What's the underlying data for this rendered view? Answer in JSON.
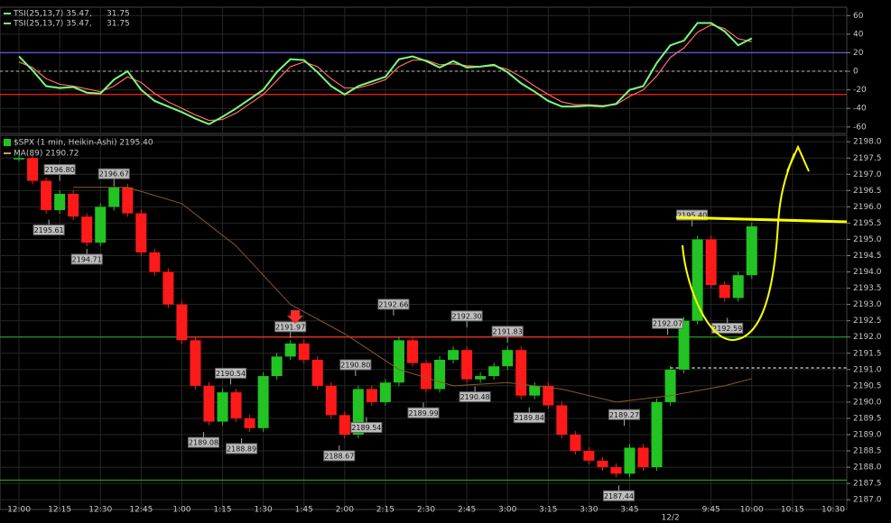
{
  "chart_data": [
    {
      "type": "line",
      "legend": [
        {
          "text": "TSI(25,13,7) 35.47,",
          "signal": "31.75"
        },
        {
          "text": "TSI(25,13,7) 35.47,",
          "signal": "31.75"
        }
      ],
      "xlim": [
        -7,
        305
      ],
      "ylim": [
        -67,
        69
      ],
      "yticks": [
        60,
        40,
        20,
        0,
        -20,
        -40,
        -60
      ],
      "levels": [
        {
          "value": 20,
          "color": "#5a5ad8"
        },
        {
          "value": 0,
          "color": "#9a9a9a",
          "dash": true
        },
        {
          "value": -25,
          "color": "#ff2020"
        }
      ],
      "x": [
        0,
        5,
        10,
        15,
        20,
        25,
        30,
        35,
        40,
        45,
        50,
        55,
        60,
        65,
        70,
        75,
        80,
        85,
        90,
        95,
        100,
        105,
        110,
        115,
        120,
        125,
        130,
        135,
        140,
        145,
        150,
        155,
        160,
        165,
        170,
        175,
        180,
        185,
        190,
        195,
        200,
        205,
        210,
        215,
        220,
        225,
        230,
        235,
        240,
        245,
        250,
        255,
        260,
        265,
        270
      ],
      "series": [
        {
          "color": "#ff6a6a",
          "values": [
            10,
            4,
            -8,
            -14,
            -16,
            -19,
            -22,
            -16,
            -6,
            -12,
            -24,
            -33,
            -40,
            -47,
            -53,
            -52,
            -45,
            -35,
            -25,
            -10,
            5,
            10,
            5,
            -8,
            -18,
            -18,
            -14,
            -9,
            5,
            12,
            12,
            7,
            8,
            6,
            5,
            6,
            2,
            -6,
            -16,
            -25,
            -33,
            -36,
            -36,
            -37,
            -36,
            -27,
            -20,
            -5,
            15,
            25,
            42,
            50,
            46,
            35,
            31.75
          ]
        },
        {
          "color": "#7cfc7c",
          "values": [
            16,
            1,
            -16,
            -18,
            -17,
            -23,
            -24,
            -9,
            0,
            -20,
            -32,
            -38,
            -44,
            -51,
            -57,
            -49,
            -40,
            -30,
            -20,
            -1,
            13,
            12,
            -1,
            -16,
            -25,
            -16,
            -11,
            -6,
            13,
            16,
            11,
            4,
            11,
            4,
            5,
            7,
            -1,
            -13,
            -22,
            -32,
            -38,
            -38,
            -37,
            -38,
            -35,
            -20,
            -16,
            9,
            28,
            33,
            52,
            52,
            43,
            28,
            35.47
          ]
        }
      ]
    },
    {
      "type": "heikin-ashi",
      "title": "$SPX (1 min, Heikin-Ashi) 2195.40",
      "ma_label": "MA(89) 2190.72",
      "xlim": [
        -7,
        305
      ],
      "ylim": [
        2186.7,
        2198.2
      ],
      "yticks": [
        {
          "value": 2198,
          "label": "2198.0"
        },
        {
          "value": 2197.5,
          "label": "2197.5"
        },
        {
          "value": 2197,
          "label": "2197.0"
        },
        {
          "value": 2196.5,
          "label": "2196.5"
        },
        {
          "value": 2196,
          "label": "2196.0"
        },
        {
          "value": 2195.5,
          "label": "2195.5"
        },
        {
          "value": 2195,
          "label": "2195.0"
        },
        {
          "value": 2194.5,
          "label": "2194.5"
        },
        {
          "value": 2194,
          "label": "2194.0"
        },
        {
          "value": 2193.5,
          "label": "2193.5"
        },
        {
          "value": 2193,
          "label": "2193.0"
        },
        {
          "value": 2192.5,
          "label": "2192.5"
        },
        {
          "value": 2192,
          "label": "2192.0"
        },
        {
          "value": 2191.5,
          "label": "2191.5"
        },
        {
          "value": 2191,
          "label": "2191.0"
        },
        {
          "value": 2190.5,
          "label": "2190.5"
        },
        {
          "value": 2190,
          "label": "2190.0"
        },
        {
          "value": 2189.5,
          "label": "2189.5"
        },
        {
          "value": 2189,
          "label": "2189.0"
        },
        {
          "value": 2188.5,
          "label": "2188.5"
        },
        {
          "value": 2188,
          "label": "2188.0"
        },
        {
          "value": 2187.5,
          "label": "2187.5"
        },
        {
          "value": 2187,
          "label": "2187.0"
        }
      ],
      "xticks": [
        {
          "value": 0,
          "label": "12:00"
        },
        {
          "value": 15,
          "label": "12:15"
        },
        {
          "value": 30,
          "label": "12:30"
        },
        {
          "value": 45,
          "label": "12:45"
        },
        {
          "value": 60,
          "label": "1:00"
        },
        {
          "value": 75,
          "label": "1:15"
        },
        {
          "value": 90,
          "label": "1:30"
        },
        {
          "value": 105,
          "label": "1:45"
        },
        {
          "value": 120,
          "label": "2:00"
        },
        {
          "value": 135,
          "label": "2:15"
        },
        {
          "value": 150,
          "label": "2:30"
        },
        {
          "value": 165,
          "label": "2:45"
        },
        {
          "value": 180,
          "label": "3:00"
        },
        {
          "value": 195,
          "label": "3:15"
        },
        {
          "value": 210,
          "label": "3:30"
        },
        {
          "value": 225,
          "label": "3:45"
        },
        {
          "value": 255,
          "label": "9:45"
        },
        {
          "value": 270,
          "label": "10:00"
        },
        {
          "value": 285,
          "label": "10:15"
        },
        {
          "value": 300,
          "label": "10:30"
        }
      ],
      "day_marker": {
        "value": 240,
        "label": "12/2"
      },
      "up_color": "#22c322",
      "down_color": "#ff1a1a",
      "ma_color": "#8b5a2b",
      "levels": [
        {
          "value": 2192,
          "color": "#1f9a1f"
        },
        {
          "value": 2192,
          "color": "#ff2020",
          "from": 60,
          "to": 240
        },
        {
          "value": 2187.6,
          "color": "#1f9a1f"
        },
        {
          "value": 2191.05,
          "color": "#dddddd",
          "dash": true,
          "from": 240
        }
      ],
      "x": [
        0,
        5,
        10,
        15,
        20,
        25,
        30,
        35,
        40,
        45,
        50,
        55,
        60,
        65,
        70,
        75,
        80,
        85,
        90,
        95,
        100,
        105,
        110,
        115,
        120,
        125,
        130,
        135,
        140,
        145,
        150,
        155,
        160,
        165,
        170,
        175,
        180,
        185,
        190,
        195,
        200,
        205,
        210,
        215,
        220,
        225,
        230,
        235,
        240,
        245,
        250,
        255,
        260,
        265,
        270
      ],
      "values": [
        2197.5,
        2196.8,
        2195.9,
        2196.4,
        2195.7,
        2194.9,
        2196.0,
        2196.6,
        2195.8,
        2194.6,
        2194.0,
        2193.0,
        2191.9,
        2190.5,
        2189.4,
        2190.3,
        2189.5,
        2189.2,
        2190.8,
        2191.4,
        2191.8,
        2191.3,
        2190.5,
        2189.6,
        2189.0,
        2190.4,
        2190.0,
        2190.6,
        2191.9,
        2191.2,
        2190.4,
        2191.3,
        2191.6,
        2190.7,
        2190.8,
        2191.1,
        2191.6,
        2190.2,
        2190.5,
        2189.9,
        2189.0,
        2188.5,
        2188.2,
        2188.0,
        2187.8,
        2188.6,
        2188.0,
        2190.0,
        2191.0,
        2192.5,
        2195.0,
        2193.6,
        2193.2,
        2193.9,
        2195.4
      ],
      "ma_x": [
        20,
        40,
        60,
        80,
        100,
        120,
        140,
        160,
        180,
        200,
        220,
        240,
        260,
        270
      ],
      "ma_values": [
        2196.6,
        2196.6,
        2196.1,
        2194.8,
        2193.0,
        2192.1,
        2191.0,
        2190.5,
        2190.6,
        2190.4,
        2190.0,
        2190.2,
        2190.5,
        2190.72
      ],
      "annotations": [
        {
          "x": 15,
          "value": 2196.8,
          "label": "2196.80",
          "side": "above"
        },
        {
          "x": 35,
          "value": 2196.67,
          "label": "2196.67",
          "side": "above"
        },
        {
          "x": 11,
          "value": 2195.61,
          "label": "2195.61",
          "side": "below"
        },
        {
          "x": 25,
          "value": 2194.71,
          "label": "2194.71",
          "side": "below"
        },
        {
          "x": 100,
          "value": 2191.97,
          "label": "2191.97",
          "side": "above"
        },
        {
          "x": 138,
          "value": 2192.66,
          "label": "2192.66",
          "side": "above"
        },
        {
          "x": 165,
          "value": 2192.3,
          "label": "2192.30",
          "side": "above"
        },
        {
          "x": 180,
          "value": 2191.83,
          "label": "2191.83",
          "side": "above"
        },
        {
          "x": 78,
          "value": 2190.54,
          "label": "2190.54",
          "side": "above"
        },
        {
          "x": 124,
          "value": 2190.8,
          "label": "2190.80",
          "side": "above"
        },
        {
          "x": 68,
          "value": 2189.08,
          "label": "2189.08",
          "side": "below"
        },
        {
          "x": 82,
          "value": 2188.89,
          "label": "2188.89",
          "side": "below"
        },
        {
          "x": 118,
          "value": 2188.67,
          "label": "2188.67",
          "side": "below"
        },
        {
          "x": 128,
          "value": 2189.54,
          "label": "2189.54",
          "side": "below"
        },
        {
          "x": 149,
          "value": 2189.99,
          "label": "2189.99",
          "side": "below"
        },
        {
          "x": 168,
          "value": 2190.48,
          "label": "2190.48",
          "side": "below"
        },
        {
          "x": 188,
          "value": 2189.84,
          "label": "2189.84",
          "side": "below"
        },
        {
          "x": 223,
          "value": 2189.27,
          "label": "2189.27",
          "side": "above"
        },
        {
          "x": 221,
          "value": 2187.44,
          "label": "2187.44",
          "side": "below"
        },
        {
          "x": 239,
          "value": 2192.07,
          "label": "2192.07",
          "side": "above"
        },
        {
          "x": 248,
          "value": 2195.4,
          "label": "2195.40",
          "side": "above"
        },
        {
          "x": 261,
          "value": 2192.59,
          "label": "2192.59",
          "side": "below"
        }
      ]
    }
  ]
}
